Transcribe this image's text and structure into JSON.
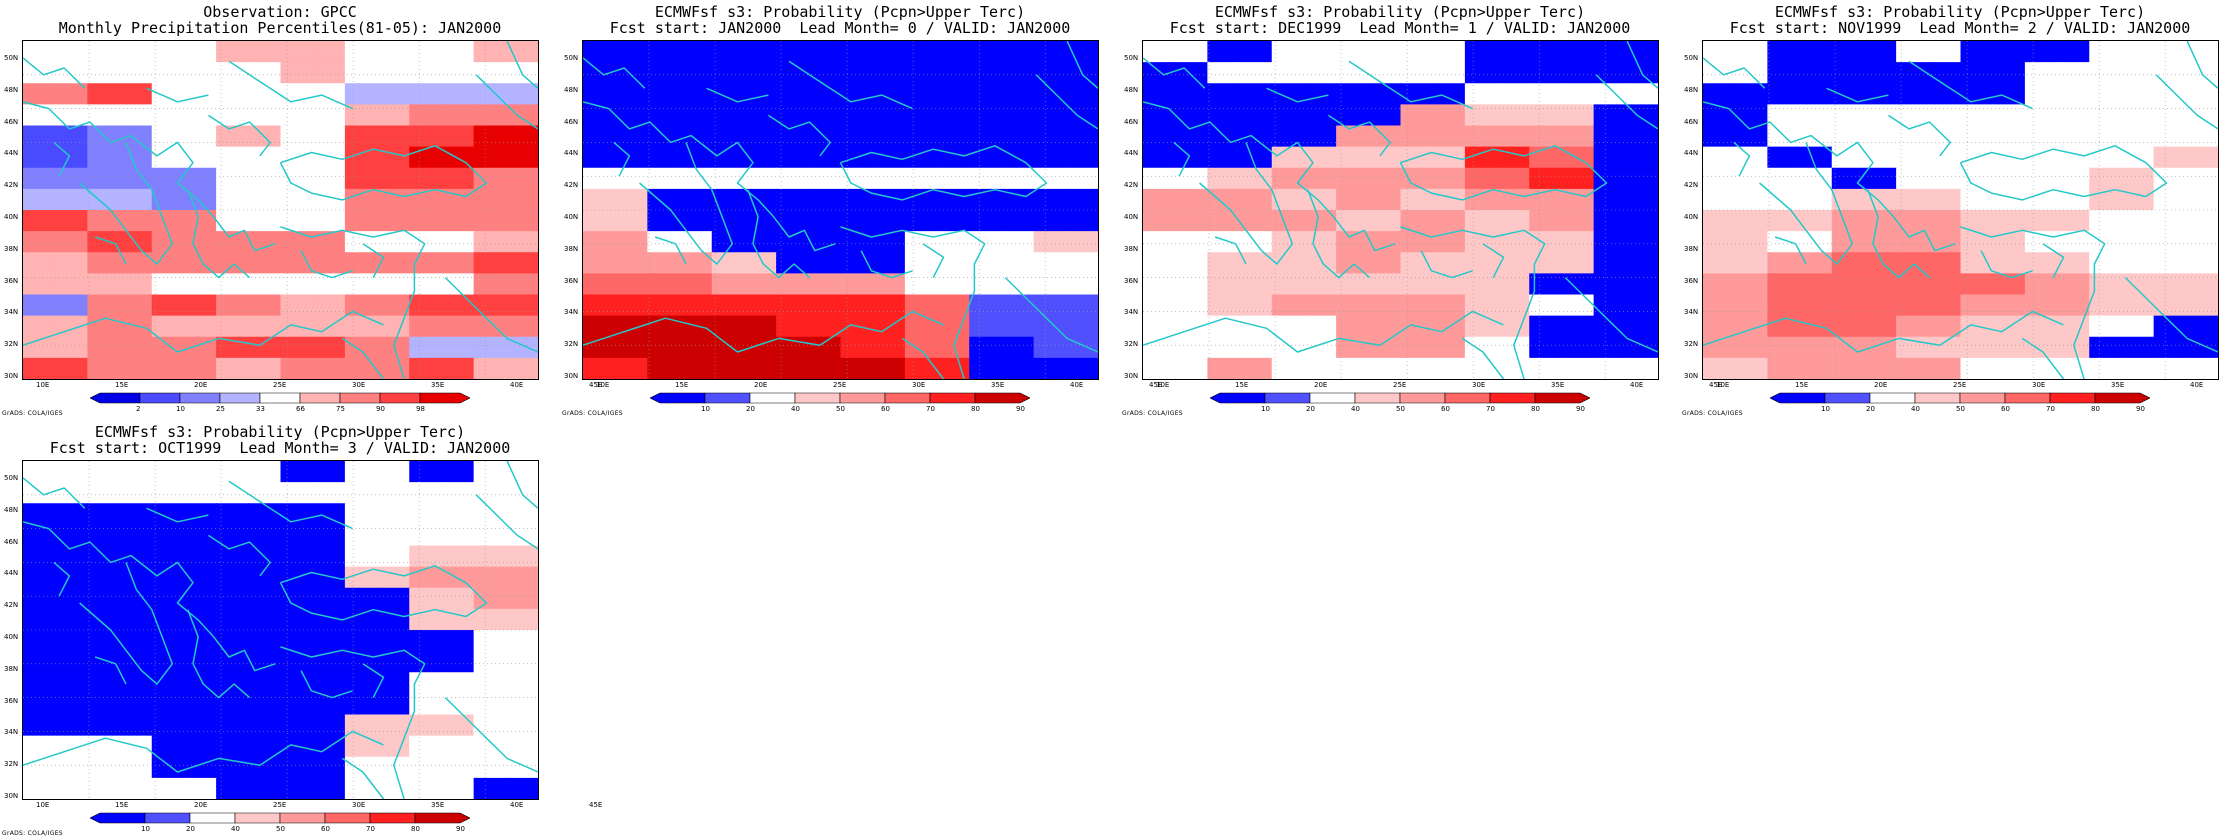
{
  "palette": {
    "obs": [
      "#0000e6",
      "#4a4aff",
      "#8080ff",
      "#b3b3ff",
      "#ffffff",
      "#ffb3b3",
      "#ff8080",
      "#ff4040",
      "#e60000"
    ],
    "prob": [
      "#0000ff",
      "#5050ff",
      "#ffffff",
      "#ffc8c8",
      "#ff9a9a",
      "#ff6666",
      "#ff2020",
      "#cc0000"
    ],
    "coast": "#24c8c8"
  },
  "icons": {
    "coastline": "coastline-icon"
  },
  "panels": [
    {
      "title1": "Observation: GPCC",
      "title2": "Monthly Precipitation Percentiles(81-05): JAN2000",
      "legend_type": "obs",
      "colorbar": [
        "2",
        "10",
        "25",
        "33",
        "66",
        "75",
        "90",
        "98"
      ],
      "credit": "GrADS: COLA/IGES",
      "grid": [
        "44455445",
        "44445444",
        "67444333",
        "44444566",
        "12454778",
        "12444788",
        "22244776",
        "33244666",
        "76644666",
        "67666445",
        "56666667",
        "55444446",
        "26765677",
        "56555566",
        "56677633",
        "76656675"
      ]
    },
    {
      "title1": "ECMWFsf s3: Probability (Pcpn>Upper Terc)",
      "title2": "Fcst start: JAN2000  Lead Month= 0 / VALID: JAN2000",
      "legend_type": "prob",
      "colorbar": [
        "10",
        "20",
        "40",
        "50",
        "60",
        "70",
        "80",
        "90"
      ],
      "credit": "GrADS: COLA/IGES",
      "grid": [
        "00000000",
        "00000000",
        "00000000",
        "00000000",
        "00000000",
        "00000000",
        "22222222",
        "30000000",
        "30000000",
        "42000223",
        "44300222",
        "55444222",
        "66666511",
        "77766511",
        "77776501",
        "67777600"
      ]
    },
    {
      "title1": "ECMWFsf s3: Probability (Pcpn>Upper Terc)",
      "title2": "Fcst start: DEC1999  Lead Month= 1 / VALID: JAN2000",
      "legend_type": "prob",
      "colorbar": [
        "10",
        "20",
        "40",
        "50",
        "60",
        "70",
        "80",
        "90"
      ],
      "credit": "GrADS: COLA/IGES",
      "grid": [
        "20222000",
        "02222000",
        "00000222",
        "00004330",
        "00044440",
        "00333650",
        "23444560",
        "44343440",
        "44434340",
        "22344330",
        "23343330",
        "23333300",
        "23444320",
        "22244300",
        "22244200",
        "24222222"
      ]
    },
    {
      "title1": "ECMWFsf s3: Probability (Pcpn>Upper Terc)",
      "title2": "Fcst start: NOV1999  Lead Month= 2 / VALID: JAN2000",
      "legend_type": "prob",
      "colorbar": [
        "10",
        "20",
        "40",
        "50",
        "60",
        "70",
        "80",
        "90"
      ],
      "credit": "GrADS: COLA/IGES",
      "grid": [
        "20020022",
        "20000222",
        "00000222",
        "02222222",
        "02222222",
        "20222223",
        "22022232",
        "22332232",
        "33443322",
        "32443222",
        "34553322",
        "45555433",
        "45554433",
        "45543320",
        "44433300",
        "34442222"
      ]
    },
    {
      "title1": "ECMWFsf s3: Probability (Pcpn>Upper Terc)",
      "title2": "Fcst start: OCT1999  Lead Month= 3 / VALID: JAN2000",
      "legend_type": "prob",
      "colorbar": [
        "10",
        "20",
        "40",
        "50",
        "60",
        "70",
        "80",
        "90"
      ],
      "credit": "GrADS: COLA/IGES",
      "grid": [
        "22220202",
        "22222222",
        "00000222",
        "00000222",
        "00000233",
        "00000344",
        "00000034",
        "00000033",
        "00000002",
        "00000002",
        "00000022",
        "00000022",
        "00000332",
        "22000322",
        "22000222",
        "22200220"
      ]
    }
  ],
  "axes": {
    "lat_labels": [
      "50N",
      "48N",
      "46N",
      "44N",
      "42N",
      "40N",
      "38N",
      "36N",
      "34N",
      "32N",
      "30N"
    ],
    "lon_labels": [
      "10E",
      "15E",
      "20E",
      "25E",
      "30E",
      "35E",
      "40E",
      "45E"
    ]
  }
}
